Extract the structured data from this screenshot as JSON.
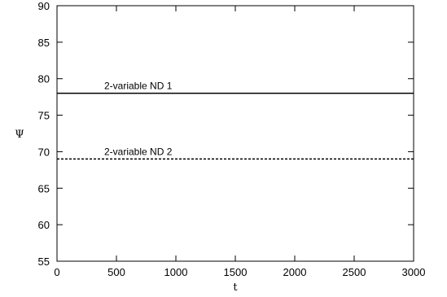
{
  "chart_data": {
    "type": "line",
    "title": "",
    "xlabel": "t",
    "ylabel": "Ψ",
    "xlim": [
      0,
      3000
    ],
    "ylim": [
      55,
      90
    ],
    "xticks": [
      0,
      500,
      1000,
      1500,
      2000,
      2500,
      3000
    ],
    "yticks": [
      55,
      60,
      65,
      70,
      75,
      80,
      85,
      90
    ],
    "grid": false,
    "series": [
      {
        "name": "2-variable ND 1",
        "style": "solid",
        "color": "#000000",
        "x": [
          0,
          3000
        ],
        "y": [
          78,
          78
        ]
      },
      {
        "name": "2-variable ND 2",
        "style": "dashed",
        "color": "#000000",
        "x": [
          0,
          3000
        ],
        "y": [
          69,
          69
        ]
      }
    ]
  }
}
